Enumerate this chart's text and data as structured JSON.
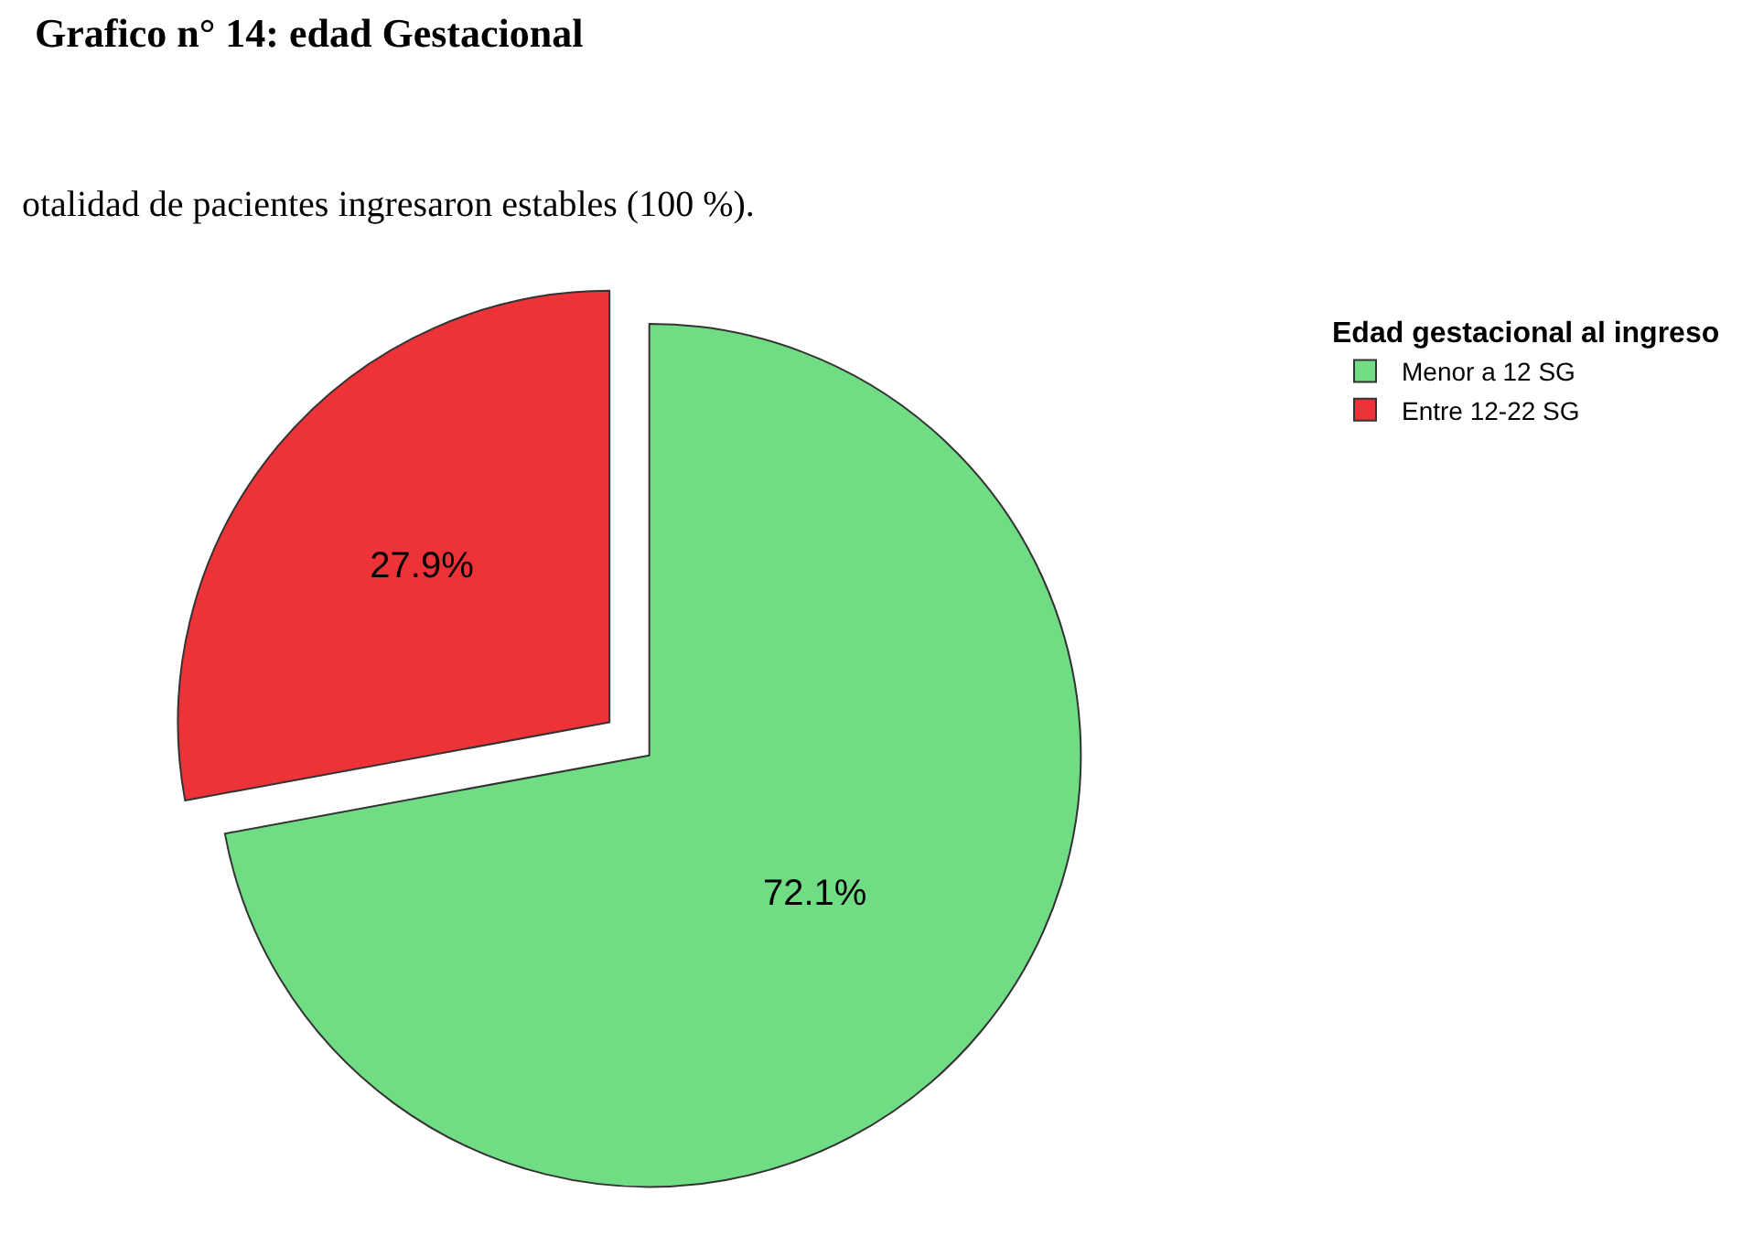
{
  "chart_data": {
    "type": "pie",
    "title": "Grafico n° 14: edad Gestacional",
    "annotations": [
      "otalidad de pacientes ingresaron estables (100 %)."
    ],
    "legend_title": "Edad gestacional al ingreso",
    "categories": [
      "Menor a 12 SG",
      "Entre 12-22 SG"
    ],
    "values": [
      72.1,
      27.9
    ],
    "colors": [
      "#70dc84",
      "#ee3338"
    ],
    "value_labels": [
      "72.1%",
      "27.9%"
    ],
    "legend": "top right"
  }
}
